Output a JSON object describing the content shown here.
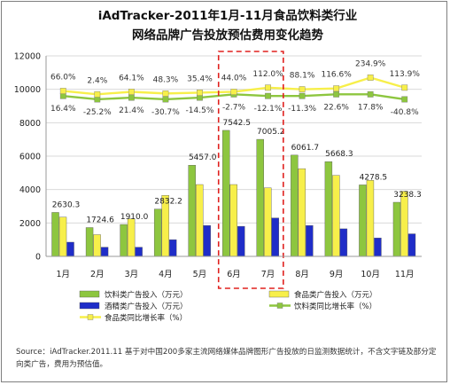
{
  "chart_data": {
    "type": "bar",
    "title_line1": "iAdTracker-2011年1月-11月食品饮料类行业",
    "title_line2": "网络品牌广告投放预估费用变化趋势",
    "categories": [
      "1月",
      "2月",
      "3月",
      "4月",
      "5月",
      "6月",
      "7月",
      "8月",
      "9月",
      "10月",
      "11月"
    ],
    "ylim": [
      0,
      12000
    ],
    "yticks": [
      "0",
      "2000",
      "4000",
      "6000",
      "8000",
      "10000",
      "12000"
    ],
    "grid": true,
    "highlight_categories": [
      "6月",
      "7月"
    ],
    "series": [
      {
        "name": "饮料类广告投入（万元）",
        "kind": "bar",
        "color": "#8dc63f",
        "values": [
          2630.3,
          1724.6,
          1910.0,
          2832.2,
          5457.0,
          7542.5,
          7005.2,
          6061.7,
          5668.3,
          4278.5,
          3238.3
        ],
        "labels": [
          "2630.3",
          "1724.6",
          "1910.0",
          "2832.2",
          "5457.0",
          "7542.5",
          "7005.2",
          "6061.7",
          "5668.3",
          "4278.5",
          "3238.3"
        ]
      },
      {
        "name": "食品类广告投入（万元）",
        "kind": "bar",
        "color": "#f7ef4a",
        "values": [
          2350,
          1300,
          2250,
          3650,
          4300,
          4300,
          4100,
          5250,
          4850,
          4550,
          3900
        ]
      },
      {
        "name": "酒精类广告投入（万元）",
        "kind": "bar",
        "color": "#1f2dc8",
        "values": [
          850,
          550,
          550,
          1000,
          1850,
          1800,
          2300,
          1850,
          1650,
          1100,
          1350
        ]
      },
      {
        "name": "饮料类同比增长率（%）",
        "kind": "line",
        "color": "#8dc63f",
        "marker": "square",
        "values": [
          9600,
          9400,
          9500,
          9400,
          9500,
          9700,
          9600,
          9600,
          9700,
          9700,
          9400
        ],
        "labels": [
          "16.4%",
          "-25.2%",
          "21.4%",
          "-30.7%",
          "-14.5%",
          "-2.7%",
          "-12.1%",
          "-11.3%",
          "22.6%",
          "17.8%",
          "-40.8%"
        ]
      },
      {
        "name": "食品类同比增长率（%）",
        "kind": "line",
        "color": "#f7ef4a",
        "marker": "square",
        "values": [
          9900,
          9700,
          9850,
          9750,
          9800,
          9850,
          10100,
          10000,
          10050,
          10700,
          10100
        ],
        "labels": [
          "66.0%",
          "2.4%",
          "64.1%",
          "48.3%",
          "35.4%",
          "44.0%",
          "112.0%",
          "88.1%",
          "116.6%",
          "234.9%",
          "113.9%"
        ]
      }
    ]
  },
  "source_note": "Source：iAdTracker.2011.11 基于对中国200多家主流网络媒体品牌图形广告投放的日监测数据统计，不含文字链及部分定向类广告，费用为预估值。"
}
